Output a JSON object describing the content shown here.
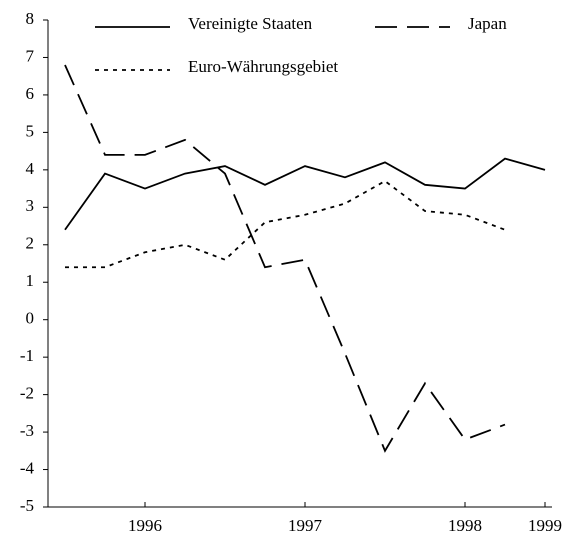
{
  "chart_data": {
    "type": "line",
    "categories": [
      null,
      null,
      "1996",
      null,
      null,
      null,
      "1997",
      null,
      null,
      null,
      "1998",
      null,
      "1999"
    ],
    "series": [
      {
        "name": "Vereinigte Staaten",
        "color": "#000000",
        "dash": "solid",
        "values": [
          2.4,
          3.9,
          3.5,
          3.9,
          4.1,
          3.6,
          4.1,
          3.8,
          4.2,
          3.6,
          3.5,
          4.3,
          4.0
        ]
      },
      {
        "name": "Japan",
        "color": "#000000",
        "dash": "dashed",
        "values": [
          6.8,
          4.4,
          4.4,
          4.8,
          3.9,
          1.4,
          1.6,
          -0.9,
          -3.5,
          -1.7,
          -3.2,
          -2.8,
          null
        ]
      },
      {
        "name": "Euro-Währungsgebiet",
        "color": "#000000",
        "dash": "dotted",
        "values": [
          1.4,
          1.4,
          1.8,
          2.0,
          1.6,
          2.6,
          2.8,
          3.1,
          3.7,
          2.9,
          2.8,
          2.4,
          null
        ]
      }
    ],
    "ylim": [
      -5,
      8
    ],
    "yticks": [
      -5,
      -4,
      -3,
      -2,
      -1,
      0,
      1,
      2,
      3,
      4,
      5,
      6,
      7,
      8
    ],
    "grid": false
  }
}
